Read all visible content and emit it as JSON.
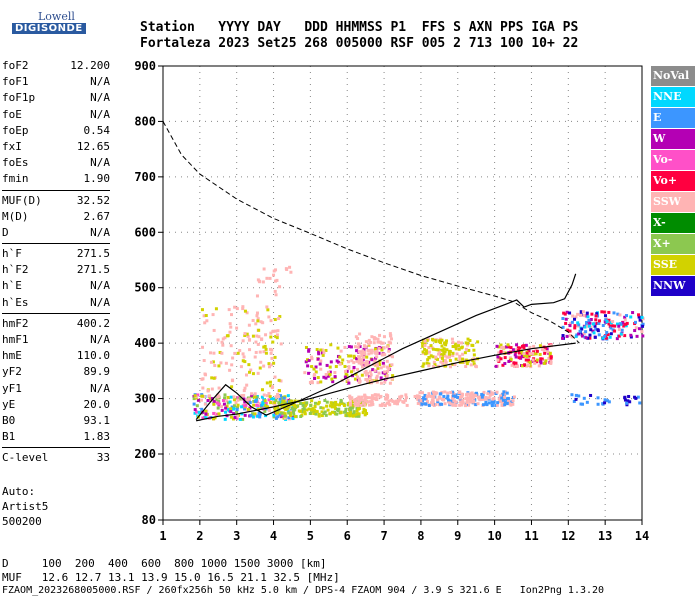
{
  "logo": {
    "line1": "Lowell",
    "line2": "DIGISONDE"
  },
  "header": {
    "labels": "Station   YYYY DAY   DDD HHMMSS P1  FFS S AXN PPS IGA PS",
    "values": "Fortaleza 2023 Set25 268 005000 RSF 005 2 713 100 10+ 22"
  },
  "params": {
    "group1": [
      {
        "name": "foF2",
        "value": "12.200"
      },
      {
        "name": "foF1",
        "value": "N/A"
      },
      {
        "name": "foF1p",
        "value": "N/A"
      },
      {
        "name": "foE",
        "value": "N/A"
      },
      {
        "name": "foEp",
        "value": "0.54"
      },
      {
        "name": "fxI",
        "value": "12.65"
      },
      {
        "name": "foEs",
        "value": "N/A"
      },
      {
        "name": "fmin",
        "value": "1.90"
      }
    ],
    "group2": [
      {
        "name": "MUF(D)",
        "value": "32.52"
      },
      {
        "name": "M(D)",
        "value": "2.67"
      },
      {
        "name": "D",
        "value": "N/A"
      }
    ],
    "group3": [
      {
        "name": "h`F",
        "value": "271.5"
      },
      {
        "name": "h`F2",
        "value": "271.5"
      },
      {
        "name": "h`E",
        "value": "N/A"
      },
      {
        "name": "h`Es",
        "value": "N/A"
      }
    ],
    "group4": [
      {
        "name": "hmF2",
        "value": "400.2"
      },
      {
        "name": "hmF1",
        "value": "N/A"
      },
      {
        "name": "hmE",
        "value": "110.0"
      },
      {
        "name": "yF2",
        "value": "89.9"
      },
      {
        "name": "yF1",
        "value": "N/A"
      },
      {
        "name": "yE",
        "value": "20.0"
      },
      {
        "name": "B0",
        "value": "93.1"
      },
      {
        "name": "B1",
        "value": "1.83"
      }
    ],
    "group5": [
      {
        "name": "C-level",
        "value": "33"
      }
    ]
  },
  "auto": {
    "line1": "Auto:",
    "line2": "Artist5",
    "line3": "500200"
  },
  "legend": [
    {
      "label": "NoVal",
      "color": "#8c8c8c"
    },
    {
      "label": "NNE",
      "color": "#00d8ff"
    },
    {
      "label": "E",
      "color": "#3c96ff"
    },
    {
      "label": "W",
      "color": "#b400b4"
    },
    {
      "label": "Vo-",
      "color": "#ff50c8"
    },
    {
      "label": "Vo+",
      "color": "#ff0040"
    },
    {
      "label": "SSW",
      "color": "#ffb4b4"
    },
    {
      "label": "X-",
      "color": "#008c00"
    },
    {
      "label": "X+",
      "color": "#8cc850"
    },
    {
      "label": "SSE",
      "color": "#d2d200"
    },
    {
      "label": "NNW",
      "color": "#1e00c8"
    }
  ],
  "chart_data": {
    "type": "scatter",
    "title": "",
    "xlabel": "",
    "ylabel": "",
    "xlim": [
      1,
      14
    ],
    "ylim": [
      80,
      900
    ],
    "x_ticks": [
      1,
      2,
      3,
      4,
      5,
      6,
      7,
      8,
      9,
      10,
      11,
      12,
      13,
      14
    ],
    "y_ticks": [
      80,
      200,
      300,
      400,
      500,
      600,
      700,
      800,
      900
    ],
    "grid": true,
    "profile_line": [
      [
        1.9,
        260
      ],
      [
        2.5,
        268
      ],
      [
        3,
        272
      ],
      [
        4,
        285
      ],
      [
        5,
        300
      ],
      [
        6,
        318
      ],
      [
        7,
        335
      ],
      [
        8,
        350
      ],
      [
        9,
        365
      ],
      [
        10,
        378
      ],
      [
        11,
        390
      ],
      [
        12.2,
        400
      ]
    ],
    "trace_line": [
      [
        1.9,
        262
      ],
      [
        2.3,
        295
      ],
      [
        2.7,
        325
      ],
      [
        3.0,
        310
      ],
      [
        3.4,
        285
      ],
      [
        3.8,
        270
      ],
      [
        4.5,
        290
      ],
      [
        5.5,
        320
      ],
      [
        6.5,
        355
      ],
      [
        7.5,
        390
      ],
      [
        8.5,
        420
      ],
      [
        9.5,
        450
      ],
      [
        10.3,
        470
      ],
      [
        10.6,
        478
      ],
      [
        10.8,
        465
      ],
      [
        11.0,
        470
      ],
      [
        11.6,
        473
      ],
      [
        11.9,
        480
      ],
      [
        12.1,
        505
      ],
      [
        12.2,
        525
      ]
    ],
    "muf_line": [
      [
        1,
        800
      ],
      [
        1.5,
        740
      ],
      [
        2,
        705
      ],
      [
        3,
        660
      ],
      [
        4,
        625
      ],
      [
        5,
        598
      ],
      [
        6,
        570
      ],
      [
        7,
        545
      ],
      [
        8,
        522
      ],
      [
        9,
        503
      ],
      [
        10,
        485
      ],
      [
        10.5,
        475
      ],
      [
        11,
        455
      ],
      [
        11.5,
        440
      ],
      [
        12,
        420
      ],
      [
        12.3,
        400
      ]
    ]
  },
  "footer": {
    "line1": "D     100  200  400  600  800 1000 1500 3000 [km]",
    "line2": "MUF   12.6 12.7 13.1 13.9 15.0 16.5 21.1 32.5 [MHz]",
    "line3": "FZAOM_2023268005000.RSF / 260fx256h 50 kHz 5.0 km / DPS-4 FZAOM 904 / 3.9 S 321.6 E   Ion2Png 1.3.20"
  }
}
